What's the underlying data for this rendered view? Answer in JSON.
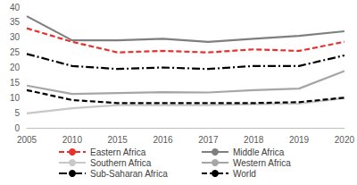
{
  "chart_data": {
    "type": "line",
    "categories": [
      "2005",
      "2010",
      "2015",
      "2016",
      "2017",
      "2018",
      "2019",
      "2020"
    ],
    "series": [
      {
        "name": "Eastern Africa",
        "color": "#e8302e",
        "line_style": "dashed",
        "values": [
          33,
          28.5,
          25,
          25.5,
          25,
          26,
          25.5,
          28.5
        ]
      },
      {
        "name": "Middle Africa",
        "color": "#7f7f7f",
        "line_style": "solid",
        "values": [
          37,
          29,
          29,
          29.5,
          28.5,
          29.5,
          30.5,
          32
        ]
      },
      {
        "name": "Southern Africa",
        "color": "#c8c8c8",
        "line_style": "solid",
        "values": [
          4.8,
          6.5,
          7.5,
          7.5,
          7.5,
          7.8,
          8,
          9.8
        ]
      },
      {
        "name": "Western Africa",
        "color": "#a6a6a6",
        "line_style": "solid",
        "values": [
          14,
          11.2,
          11.5,
          11.8,
          11.7,
          12.5,
          13,
          18.8
        ]
      },
      {
        "name": "Sub-Saharan Africa",
        "color": "#000000",
        "line_style": "dashdot",
        "values": [
          24.5,
          20.5,
          19.5,
          20,
          19.5,
          20.5,
          20.5,
          24
        ]
      },
      {
        "name": "World",
        "color": "#000000",
        "line_style": "dashed",
        "values": [
          12.5,
          9.2,
          8.2,
          8.2,
          8.2,
          8.2,
          8.5,
          10
        ]
      }
    ],
    "ylim": [
      0,
      40
    ],
    "yticks": [
      0,
      5,
      10,
      15,
      20,
      25,
      30,
      35,
      40
    ],
    "grid": false,
    "legend": "bottom"
  }
}
